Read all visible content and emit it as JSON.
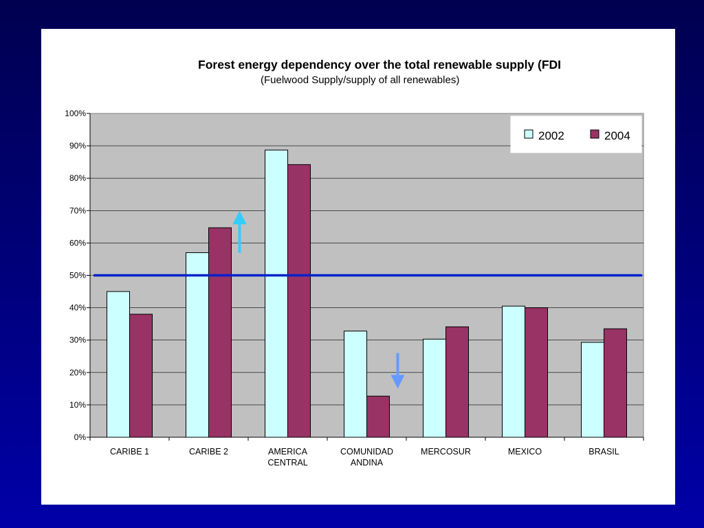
{
  "chart_data": {
    "type": "bar",
    "title": "Forest energy dependency over the total renewable supply (FDI",
    "subtitle": "(Fuelwood Supply/supply of all renewables)",
    "categories": [
      [
        "CARIBE 1"
      ],
      [
        "CARIBE 2"
      ],
      [
        "AMERICA",
        "CENTRAL"
      ],
      [
        "COMUNIDAD",
        "ANDINA"
      ],
      [
        "MERCOSUR"
      ],
      [
        "MEXICO"
      ],
      [
        "BRASIL"
      ]
    ],
    "series": [
      {
        "name": "2002",
        "color": "#ccffff",
        "values": [
          45,
          57,
          88.7,
          32.8,
          30.3,
          40.5,
          29.3
        ]
      },
      {
        "name": "2004",
        "color": "#993366",
        "values": [
          38,
          64.7,
          84.2,
          12.7,
          34.1,
          40,
          33.5
        ]
      }
    ],
    "ylim": [
      0,
      100
    ],
    "yticks": [
      0,
      10,
      20,
      30,
      40,
      50,
      60,
      70,
      80,
      90,
      100
    ],
    "ytick_labels": [
      "0%",
      "10%",
      "20%",
      "30%",
      "40%",
      "50%",
      "60%",
      "70%",
      "80%",
      "90%",
      "100%"
    ],
    "reference_line": {
      "value": 50,
      "color": "#0022cc"
    },
    "annotations": [
      {
        "type": "arrow-up",
        "category_index": 1,
        "from": 57,
        "to": 70,
        "color": "#33ccff"
      },
      {
        "type": "arrow-down",
        "category_index": 3,
        "from": 26,
        "to": 15,
        "color": "#6699ff"
      }
    ],
    "plot_background": "#c0c0c0",
    "grid": true,
    "legend_position": "top-right"
  }
}
